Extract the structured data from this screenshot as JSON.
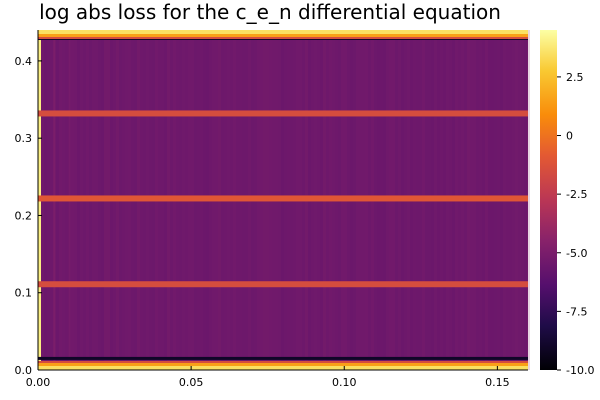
{
  "chart_data": {
    "type": "heatmap",
    "title": "log abs loss for the c_e_n differential equation",
    "xlabel": "",
    "ylabel": "",
    "xlim": [
      0.0,
      0.16
    ],
    "ylim": [
      0.0,
      0.44
    ],
    "x_ticks": [
      0.0,
      0.05,
      0.1,
      0.15
    ],
    "x_tick_labels": [
      "0.00",
      "0.05",
      "0.10",
      "0.15"
    ],
    "y_ticks": [
      0.0,
      0.1,
      0.2,
      0.3,
      0.4
    ],
    "y_tick_labels": [
      "0.0",
      "0.1",
      "0.2",
      "0.3",
      "0.4"
    ],
    "colorbar": {
      "colormap": "inferno",
      "range": [
        -10.0,
        4.5
      ],
      "ticks": [
        -10.0,
        -7.5,
        -5.0,
        -2.5,
        0.0,
        2.5
      ],
      "tick_labels": [
        "-10.0",
        "-7.5",
        "-5.0",
        "-2.5",
        "0",
        "2.5"
      ]
    },
    "background_value": -5.4,
    "horizontal_bands": [
      {
        "y": 0.0,
        "value": 3.5
      },
      {
        "y": 0.015,
        "value": -9.0
      },
      {
        "y": 0.111,
        "value": -1.5
      },
      {
        "y": 0.222,
        "value": -1.0
      },
      {
        "y": 0.332,
        "value": -1.5
      },
      {
        "y": 0.429,
        "value": -9.0
      },
      {
        "y": 0.44,
        "value": 3.5
      }
    ],
    "vertical_bands": [
      {
        "x": 0.0,
        "value": 4.0
      },
      {
        "x": 0.005,
        "value": -4.8
      },
      {
        "x": 0.01,
        "value": -5.0
      }
    ],
    "grid": false
  }
}
